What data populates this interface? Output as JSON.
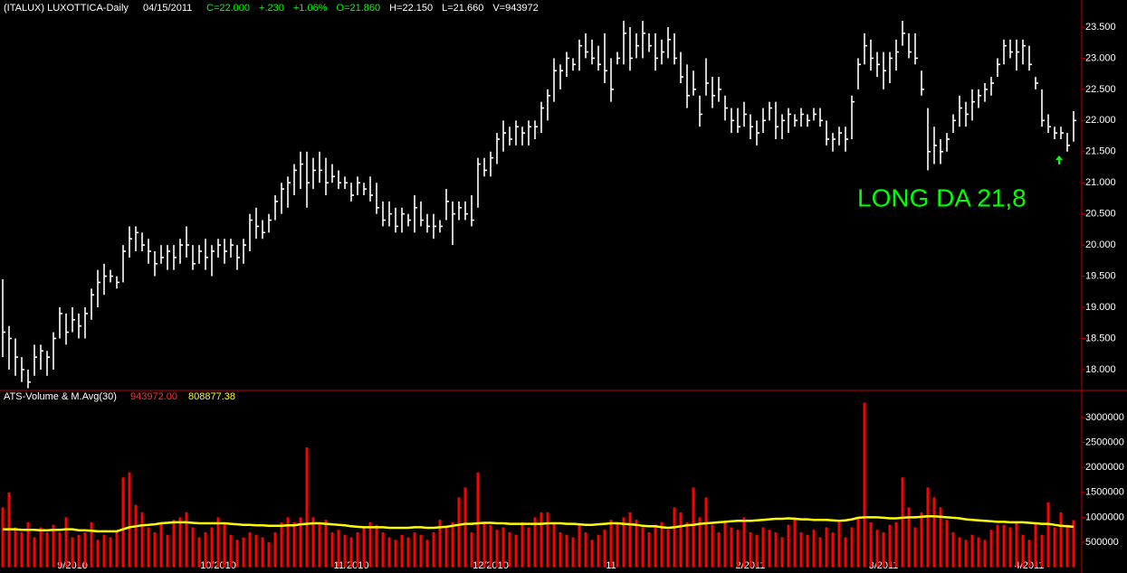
{
  "chart_data": [
    {
      "type": "hlc",
      "title": "(ITALUX) LUXOTTICA-Daily",
      "date": "04/15/2011",
      "stats": [
        {
          "text": "C=22.000",
          "color": "#00ff00"
        },
        {
          "text": "+.230",
          "color": "#00ff00"
        },
        {
          "text": "+1.06%",
          "color": "#00ff00"
        },
        {
          "text": "O=21.860",
          "color": "#00ff00"
        },
        {
          "text": "H=22.150",
          "color": "#ffffff"
        },
        {
          "text": "L=21.660",
          "color": "#ffffff"
        },
        {
          "text": "V=943972",
          "color": "#ffffff"
        }
      ],
      "annotation": "LONG DA 21,8",
      "annotation_color": "#00ff00",
      "color": "#ffffff",
      "ylim": [
        17.665,
        23.935
      ],
      "yticks": [
        {
          "value": 18,
          "label": "18.000"
        },
        {
          "value": 18.5,
          "label": "18.500"
        },
        {
          "value": 19,
          "label": "19.000"
        },
        {
          "value": 19.5,
          "label": "19.500"
        },
        {
          "value": 20,
          "label": "20.000"
        },
        {
          "value": 20.5,
          "label": "20.500"
        },
        {
          "value": 21,
          "label": "21.000"
        },
        {
          "value": 21.5,
          "label": "21.500"
        },
        {
          "value": 22,
          "label": "22.000"
        },
        {
          "value": 22.5,
          "label": "22.500"
        },
        {
          "value": 23,
          "label": "23.000"
        },
        {
          "value": 23.5,
          "label": "23.500"
        }
      ],
      "high": [
        19.45,
        18.7,
        18.5,
        18.2,
        18.0,
        18.4,
        18.4,
        18.3,
        18.6,
        19.0,
        18.9,
        19.0,
        18.9,
        19.0,
        19.3,
        19.6,
        19.7,
        19.6,
        19.5,
        20.0,
        20.3,
        20.3,
        20.2,
        20.1,
        19.9,
        20.0,
        20.0,
        20.0,
        20.1,
        20.3,
        20.0,
        20.0,
        20.1,
        20.0,
        20.1,
        20.1,
        20.1,
        20.0,
        20.1,
        20.5,
        20.6,
        20.4,
        20.5,
        20.8,
        21.0,
        21.1,
        21.3,
        21.5,
        21.5,
        21.4,
        21.5,
        21.4,
        21.3,
        21.2,
        21.1,
        21.0,
        21.1,
        21.0,
        21.1,
        21.0,
        20.7,
        20.7,
        20.6,
        20.6,
        20.5,
        20.8,
        20.7,
        20.5,
        20.5,
        20.4,
        20.9,
        20.7,
        20.7,
        20.7,
        20.8,
        21.4,
        21.4,
        21.5,
        21.8,
        22.0,
        21.9,
        22.0,
        21.9,
        22.0,
        22.0,
        22.3,
        22.5,
        23.0,
        22.9,
        23.1,
        23.0,
        23.3,
        23.4,
        23.3,
        23.2,
        23.4,
        23.0,
        23.1,
        23.6,
        23.5,
        23.4,
        23.6,
        23.4,
        23.4,
        23.3,
        23.5,
        23.4,
        23.1,
        22.9,
        22.8,
        22.4,
        23.0,
        22.7,
        22.7,
        22.4,
        22.2,
        22.2,
        22.3,
        22.1,
        22.0,
        22.2,
        22.3,
        22.3,
        22.1,
        22.2,
        22.1,
        22.2,
        22.1,
        22.2,
        22.2,
        22.0,
        21.8,
        21.9,
        21.9,
        22.4,
        23.0,
        23.4,
        23.3,
        23.1,
        23.1,
        23.1,
        23.3,
        23.6,
        23.4,
        23.4,
        22.8,
        22.2,
        21.9,
        21.7,
        21.8,
        22.1,
        22.4,
        22.3,
        22.5,
        22.5,
        22.6,
        22.7,
        23.0,
        23.3,
        23.3,
        23.3,
        23.3,
        23.2,
        22.7,
        22.5,
        22.1,
        21.9,
        21.9,
        21.8,
        22.15
      ],
      "low": [
        18.2,
        18.0,
        17.9,
        17.8,
        17.7,
        17.9,
        18.0,
        17.9,
        18.0,
        18.5,
        18.4,
        18.6,
        18.5,
        18.5,
        18.8,
        19.0,
        19.2,
        19.4,
        19.3,
        19.4,
        19.8,
        19.9,
        19.9,
        19.7,
        19.5,
        19.7,
        19.6,
        19.6,
        19.7,
        19.8,
        19.6,
        19.7,
        19.6,
        19.5,
        19.8,
        19.7,
        19.8,
        19.6,
        19.7,
        19.9,
        20.1,
        20.1,
        20.2,
        20.4,
        20.5,
        20.6,
        20.8,
        20.9,
        20.6,
        20.9,
        21.0,
        20.8,
        21.0,
        20.9,
        20.9,
        20.7,
        20.8,
        20.8,
        20.7,
        20.5,
        20.3,
        20.3,
        20.2,
        20.2,
        20.3,
        20.2,
        20.3,
        20.2,
        20.1,
        20.2,
        20.4,
        20.0,
        20.4,
        20.4,
        20.3,
        20.6,
        21.1,
        21.1,
        21.3,
        21.5,
        21.6,
        21.6,
        21.6,
        21.6,
        21.7,
        21.8,
        22.0,
        22.3,
        22.5,
        22.7,
        22.8,
        22.8,
        23.0,
        22.9,
        22.8,
        22.6,
        22.3,
        22.9,
        22.9,
        22.8,
        23.0,
        23.0,
        23.1,
        22.8,
        22.9,
        23.0,
        22.9,
        22.6,
        22.2,
        22.4,
        21.9,
        22.4,
        22.2,
        22.3,
        22.0,
        21.8,
        21.8,
        21.9,
        21.7,
        21.6,
        21.8,
        22.0,
        21.7,
        21.7,
        21.8,
        21.9,
        21.9,
        21.9,
        22.0,
        21.9,
        21.6,
        21.5,
        21.6,
        21.5,
        21.7,
        22.5,
        22.9,
        22.8,
        22.7,
        22.5,
        22.6,
        22.8,
        23.2,
        23.0,
        22.9,
        22.4,
        21.2,
        21.3,
        21.3,
        21.5,
        21.8,
        21.9,
        21.9,
        22.0,
        22.2,
        22.3,
        22.4,
        22.7,
        22.9,
        23.0,
        22.8,
        22.9,
        22.8,
        22.5,
        21.9,
        21.8,
        21.7,
        21.7,
        21.5,
        21.66
      ],
      "close": [
        18.6,
        18.5,
        18.2,
        18.0,
        17.8,
        18.2,
        18.3,
        18.2,
        18.5,
        18.9,
        18.6,
        18.8,
        18.7,
        18.9,
        19.2,
        19.4,
        19.5,
        19.5,
        19.4,
        19.9,
        20.1,
        20.2,
        20.0,
        19.9,
        19.7,
        19.8,
        19.9,
        19.8,
        20.0,
        20.0,
        19.7,
        19.9,
        19.8,
        19.9,
        20.0,
        19.9,
        20.0,
        19.8,
        20.0,
        20.4,
        20.3,
        20.2,
        20.4,
        20.7,
        20.9,
        21.0,
        21.2,
        21.3,
        21.0,
        21.2,
        21.2,
        21.0,
        21.1,
        21.0,
        21.0,
        20.8,
        21.0,
        20.9,
        20.8,
        20.6,
        20.4,
        20.5,
        20.3,
        20.5,
        20.4,
        20.6,
        20.4,
        20.3,
        20.3,
        20.3,
        20.7,
        20.5,
        20.6,
        20.5,
        20.4,
        21.3,
        21.2,
        21.4,
        21.7,
        21.8,
        21.7,
        21.9,
        21.8,
        21.9,
        21.9,
        22.2,
        22.4,
        22.8,
        22.8,
        23.0,
        22.9,
        23.2,
        23.1,
        23.0,
        22.9,
        22.8,
        22.5,
        23.0,
        23.4,
        23.0,
        23.2,
        23.4,
        23.2,
        23.0,
        23.1,
        23.3,
        23.0,
        22.7,
        22.4,
        22.5,
        22.1,
        22.6,
        22.4,
        22.5,
        22.2,
        22.0,
        21.9,
        22.1,
        21.9,
        21.8,
        22.0,
        22.2,
        21.9,
        22.0,
        22.1,
        22.0,
        22.1,
        22.0,
        22.1,
        22.0,
        21.7,
        21.7,
        21.8,
        21.7,
        22.3,
        22.9,
        23.2,
        23.0,
        22.9,
        22.8,
        23.0,
        23.1,
        23.4,
        23.1,
        23.0,
        22.5,
        21.5,
        21.6,
        21.5,
        21.7,
        22.0,
        22.2,
        22.1,
        22.3,
        22.4,
        22.5,
        22.6,
        22.9,
        23.2,
        23.1,
        23.1,
        23.2,
        22.9,
        22.6,
        22.0,
        21.9,
        21.8,
        21.8,
        21.6,
        22.0
      ],
      "xticks": [
        {
          "value": 11,
          "label": "9/2010"
        },
        {
          "value": 34,
          "label": "10/2010"
        },
        {
          "value": 55,
          "label": "11/2010"
        },
        {
          "value": 77,
          "label": "12/2010"
        },
        {
          "value": 96,
          "label": "11"
        },
        {
          "value": 118,
          "label": "2/2011"
        },
        {
          "value": 139,
          "label": "3/2011"
        },
        {
          "value": 162,
          "label": "4/2011"
        }
      ]
    },
    {
      "type": "bar",
      "title": "ATS-Volume & M.Avg(30)",
      "volume_label": "943972.00",
      "average_label": "808877.38",
      "ylim": [
        0,
        3543000
      ],
      "yticks": [
        500000,
        1000000,
        1500000,
        2000000,
        2500000,
        3000000
      ],
      "volume": {
        "color": "#ff0000",
        "values": [
          1200000,
          1500000,
          800000,
          700000,
          900000,
          600000,
          800000,
          700000,
          850000,
          700000,
          1000000,
          600000,
          650000,
          700000,
          900000,
          550000,
          650000,
          600000,
          700000,
          1800000,
          1900000,
          1250000,
          1100000,
          800000,
          700000,
          900000,
          650000,
          950000,
          1000000,
          1100000,
          800000,
          600000,
          700000,
          800000,
          1000000,
          900000,
          650000,
          550000,
          600000,
          700000,
          650000,
          600000,
          500000,
          700000,
          900000,
          1000000,
          900000,
          1000000,
          2400000,
          1000000,
          900000,
          950000,
          700000,
          750000,
          650000,
          600000,
          700000,
          800000,
          900000,
          850000,
          700000,
          600000,
          550000,
          650000,
          600000,
          700000,
          650000,
          550000,
          700000,
          950000,
          800000,
          900000,
          1400000,
          1600000,
          700000,
          1900000,
          900000,
          850000,
          750000,
          800000,
          700000,
          650000,
          900000,
          800000,
          1000000,
          1100000,
          1100000,
          900000,
          700000,
          650000,
          600000,
          850000,
          700000,
          550000,
          650000,
          750000,
          950000,
          900000,
          1000000,
          1100000,
          950000,
          800000,
          700000,
          850000,
          900000,
          750000,
          1200000,
          1100000,
          900000,
          1600000,
          1000000,
          1400000,
          850000,
          700000,
          900000,
          800000,
          750000,
          1000000,
          700000,
          650000,
          800000,
          750000,
          700000,
          600000,
          850000,
          1000000,
          700000,
          650000,
          750000,
          600000,
          800000,
          700000,
          900000,
          600000,
          800000,
          1000000,
          3300000,
          900000,
          750000,
          700000,
          850000,
          900000,
          1800000,
          1200000,
          800000,
          1100000,
          1600000,
          1400000,
          1200000,
          950000,
          700000,
          600000,
          550000,
          650000,
          600000,
          550000,
          750000,
          850000,
          850000,
          800000,
          900000,
          650000,
          550000,
          900000,
          650000,
          1300000,
          800000,
          1100000,
          850000,
          943972
        ]
      },
      "average": {
        "color": "#ffff00",
        "values": [
          760000,
          760000,
          760000,
          750000,
          750000,
          750000,
          740000,
          740000,
          750000,
          750000,
          760000,
          760000,
          740000,
          740000,
          730000,
          720000,
          720000,
          720000,
          720000,
          760000,
          800000,
          820000,
          840000,
          850000,
          860000,
          880000,
          890000,
          900000,
          900000,
          900000,
          890000,
          880000,
          880000,
          880000,
          880000,
          880000,
          870000,
          860000,
          850000,
          850000,
          840000,
          840000,
          830000,
          830000,
          830000,
          840000,
          840000,
          860000,
          870000,
          880000,
          880000,
          870000,
          860000,
          850000,
          840000,
          820000,
          810000,
          800000,
          800000,
          800000,
          800000,
          790000,
          790000,
          790000,
          790000,
          800000,
          800000,
          790000,
          790000,
          800000,
          810000,
          830000,
          850000,
          870000,
          870000,
          880000,
          890000,
          890000,
          880000,
          880000,
          870000,
          870000,
          870000,
          870000,
          870000,
          870000,
          880000,
          880000,
          880000,
          870000,
          870000,
          860000,
          850000,
          850000,
          860000,
          870000,
          880000,
          880000,
          870000,
          860000,
          850000,
          830000,
          820000,
          820000,
          800000,
          790000,
          800000,
          820000,
          840000,
          850000,
          870000,
          880000,
          890000,
          900000,
          910000,
          920000,
          930000,
          930000,
          930000,
          940000,
          950000,
          960000,
          970000,
          970000,
          980000,
          970000,
          960000,
          960000,
          950000,
          950000,
          950000,
          940000,
          930000,
          940000,
          960000,
          990000,
          1000000,
          1000000,
          1000000,
          990000,
          980000,
          980000,
          990000,
          1000000,
          1000000,
          1010000,
          1020000,
          1020000,
          1010000,
          1000000,
          990000,
          980000,
          960000,
          950000,
          940000,
          930000,
          920000,
          910000,
          910000,
          900000,
          900000,
          900000,
          890000,
          880000,
          870000,
          870000,
          850000,
          830000,
          820000,
          808877
        ]
      }
    }
  ]
}
